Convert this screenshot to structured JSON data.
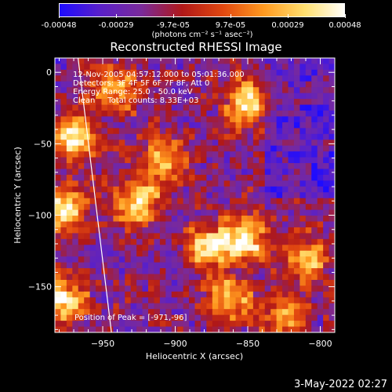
{
  "colorbar": {
    "tick_labels": [
      "-0.00048",
      "-0.00029",
      "-9.7e-05",
      "9.7e-05",
      "0.00029",
      "0.00048"
    ],
    "units": "(photons cm⁻² s⁻¹ asec⁻²)",
    "colors": [
      "#1e0cff",
      "#5a20c8",
      "#7a2a9a",
      "#b01818",
      "#e24810",
      "#ff9a20",
      "#ffe070",
      "#ffffff"
    ]
  },
  "chart_data": {
    "type": "heatmap",
    "title": "Reconstructed RHESSI Image",
    "xlabel": "Heliocentric X (arcsec)",
    "ylabel": "Heliocentric Y (arcsec)",
    "xlim": [
      -983,
      -790
    ],
    "ylim": [
      -182,
      10
    ],
    "x_ticks": [
      -950,
      -900,
      -850,
      -800
    ],
    "y_ticks": [
      0,
      -50,
      -100,
      -150
    ],
    "value_range": [
      -0.00048,
      0.00048
    ],
    "peak": {
      "x": -971,
      "y": -96
    },
    "limb_x": [
      -967,
      -944
    ],
    "limb_y": [
      10,
      -182
    ],
    "bright_sources": [
      {
        "x": -978,
        "y": -95,
        "value": 0.00048
      },
      {
        "x": -970,
        "y": -45,
        "value": 0.0004
      },
      {
        "x": -978,
        "y": -160,
        "value": 0.00044
      },
      {
        "x": -925,
        "y": -90,
        "value": 0.0004
      },
      {
        "x": -908,
        "y": -62,
        "value": 0.00028
      },
      {
        "x": -877,
        "y": -122,
        "value": 0.00033
      },
      {
        "x": -852,
        "y": -117,
        "value": 0.00044
      },
      {
        "x": -850,
        "y": -20,
        "value": 0.00038
      },
      {
        "x": -863,
        "y": -158,
        "value": 0.0003
      },
      {
        "x": -810,
        "y": -130,
        "value": 0.00028
      },
      {
        "x": -825,
        "y": -172,
        "value": 0.00024
      },
      {
        "x": -942,
        "y": -14,
        "value": 0.00024
      }
    ],
    "annotations": [
      "12-Nov-2005 04:57:12.000 to 05:01:36.000",
      "Detectors: 3F 4F 5F 6F 7F 8F, Att 0",
      "Energy Range: 25.0 - 50.0 keV",
      "Clean     Total counts: 8.33E+03"
    ],
    "peak_label": "Position of Peak = [-971,-96]"
  },
  "timestamp": "3-May-2022 02:27"
}
